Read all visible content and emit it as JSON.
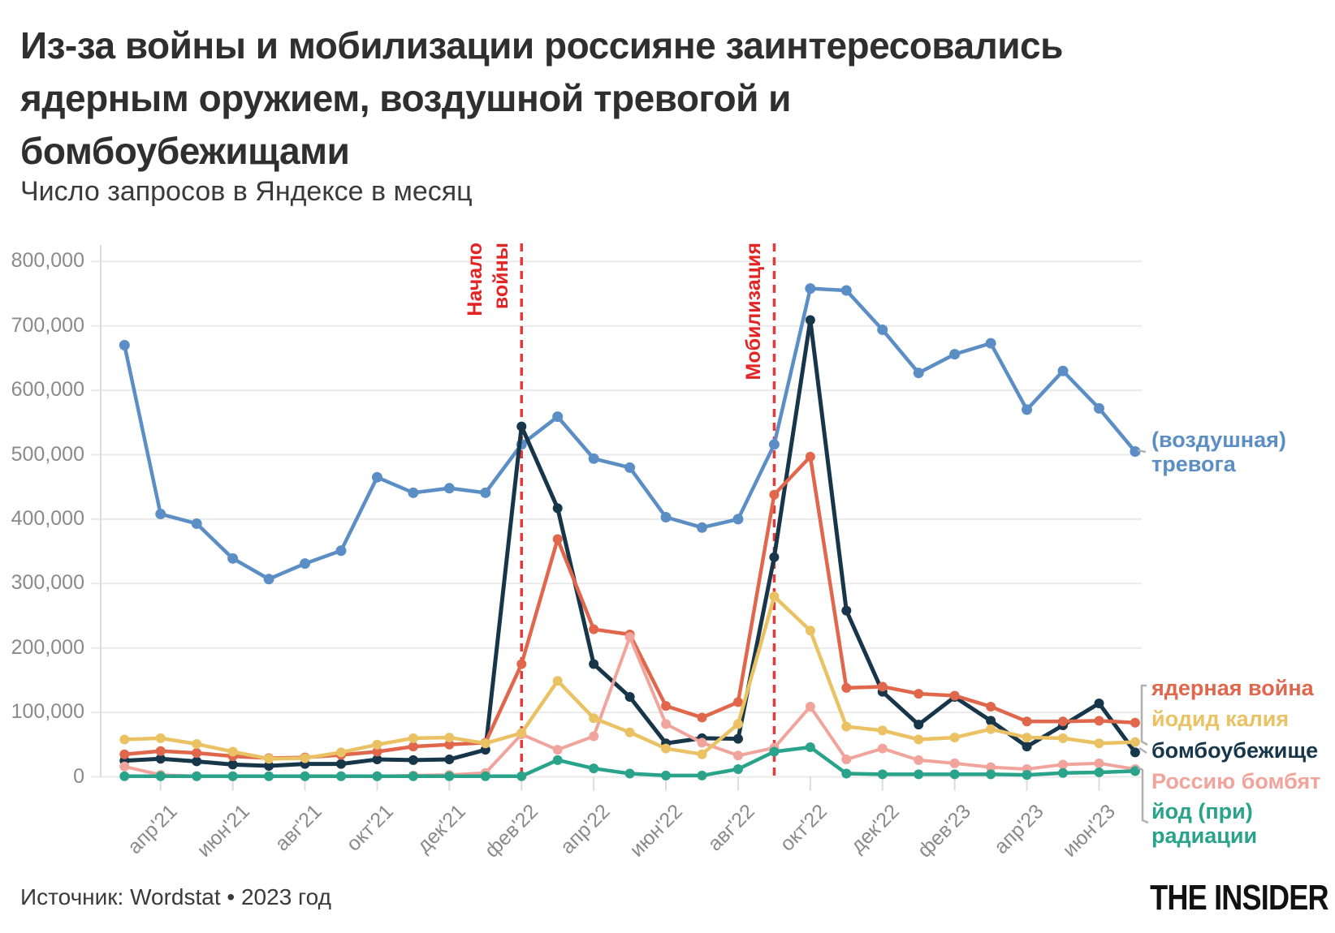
{
  "header": {
    "title_lines": [
      "Из-за войны и мобилизации россияне заинтересовались",
      "ядерным оружием, воздушной тревогой и",
      "бомбоубежищами"
    ],
    "subtitle": "Число запросов в Яндексе в месяц"
  },
  "annotations": [
    {
      "lines": [
        "Начало",
        "войны"
      ],
      "index": 11
    },
    {
      "lines": [
        "Мобилизация"
      ],
      "index": 18
    }
  ],
  "footer": {
    "source": "Источник: Wordstat • 2023 год",
    "logo": "THE INSIDER"
  },
  "colors": {
    "annotation_line": "#e23b3b",
    "annotation_text": "#e32424",
    "grid": "#eaeaea",
    "axis_text": "#8a8a8a",
    "bracket": "#b0b0b0"
  },
  "chart_data": {
    "type": "line",
    "months": [
      "мар'21",
      "апр'21",
      "май'21",
      "июн'21",
      "июл'21",
      "авг'21",
      "сен'21",
      "окт'21",
      "ноя'21",
      "дек'21",
      "янв'22",
      "фев'22",
      "мар'22",
      "апр'22",
      "май'22",
      "июн'22",
      "июл'22",
      "авг'22",
      "сен'22",
      "окт'22",
      "ноя'22",
      "дек'22",
      "янв'23",
      "фев'23",
      "мар'23",
      "апр'23",
      "май'23",
      "июн'23",
      "июл'23"
    ],
    "ylim": [
      0,
      800000
    ],
    "ytick_step": 100000,
    "grid": true,
    "tick_label_rotation": -45,
    "legend_position": "right-labels",
    "series": [
      {
        "name": "(воздушная) тревога",
        "color": "#5b8ec5",
        "values": [
          670000,
          408000,
          393000,
          339000,
          307000,
          331000,
          351000,
          465000,
          441000,
          448000,
          441000,
          516000,
          559000,
          494000,
          480000,
          403000,
          387000,
          400000,
          516000,
          758000,
          755000,
          694000,
          627000,
          656000,
          673000,
          570000,
          630000,
          572000,
          505000
        ]
      },
      {
        "name": "ядерная война",
        "color": "#e0674c",
        "values": [
          35000,
          40000,
          37000,
          32000,
          29000,
          30000,
          34000,
          39000,
          47000,
          50000,
          53000,
          175000,
          369000,
          229000,
          221000,
          110000,
          92000,
          116000,
          438000,
          497000,
          138000,
          140000,
          129000,
          126000,
          109000,
          86000,
          86000,
          87000,
          84000
        ]
      },
      {
        "name": "йодид калия",
        "color": "#eac264",
        "values": [
          58000,
          60000,
          51000,
          39000,
          28000,
          29000,
          38000,
          50000,
          60000,
          61000,
          52000,
          68000,
          149000,
          91000,
          69000,
          44000,
          35000,
          82000,
          280000,
          227000,
          78000,
          72000,
          58000,
          61000,
          74000,
          61000,
          60000,
          52000,
          54000
        ]
      },
      {
        "name": "бомбоубежище",
        "color": "#17364a",
        "values": [
          25000,
          28000,
          24000,
          19000,
          17000,
          20000,
          20000,
          27000,
          26000,
          27000,
          42000,
          544000,
          417000,
          175000,
          124000,
          52000,
          60000,
          59000,
          341000,
          709000,
          258000,
          132000,
          81000,
          124000,
          87000,
          47000,
          80000,
          114000,
          38000
        ]
      },
      {
        "name": "Россию бомбят",
        "color": "#f0a49c",
        "values": [
          16000,
          3000,
          1000,
          1000,
          1000,
          1000,
          1000,
          1000,
          2000,
          3000,
          6000,
          66000,
          42000,
          63000,
          217000,
          82000,
          53000,
          33000,
          45000,
          109000,
          27000,
          44000,
          26000,
          21000,
          15000,
          12000,
          19000,
          21000,
          12000
        ]
      },
      {
        "name": "йод (при) радиации",
        "color": "#2aa38b",
        "values": [
          1000,
          1000,
          1000,
          1000,
          1000,
          1000,
          1000,
          1000,
          1000,
          1000,
          1000,
          1000,
          26000,
          13000,
          5000,
          2000,
          2000,
          12000,
          39000,
          46000,
          5000,
          4000,
          4000,
          4000,
          4000,
          3000,
          6000,
          7000,
          9000
        ]
      }
    ]
  }
}
